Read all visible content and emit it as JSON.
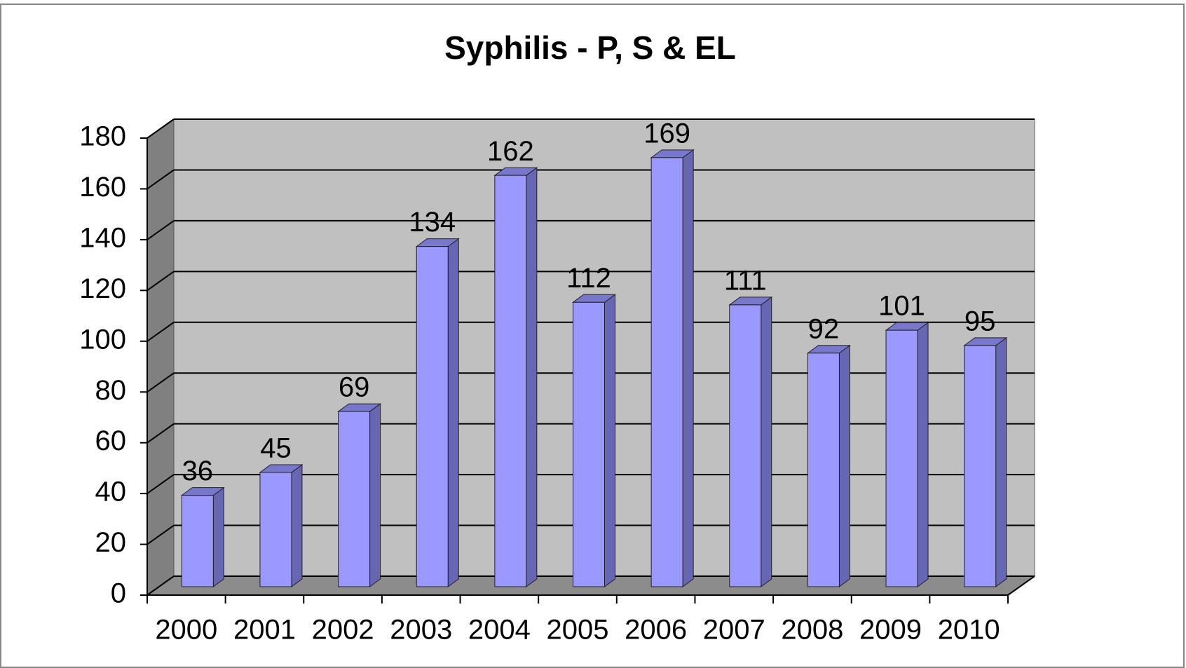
{
  "chart_data": {
    "type": "bar",
    "title": "Syphilis - P, S & EL",
    "categories": [
      "2000",
      "2001",
      "2002",
      "2003",
      "2004",
      "2005",
      "2006",
      "2007",
      "2008",
      "2009",
      "2010"
    ],
    "values": [
      36,
      45,
      69,
      134,
      162,
      112,
      169,
      111,
      92,
      101,
      95
    ],
    "color": "#9999ff",
    "ylim": [
      0,
      180
    ],
    "yticks": [
      0,
      20,
      40,
      60,
      80,
      100,
      120,
      140,
      160,
      180
    ],
    "grid": true
  }
}
